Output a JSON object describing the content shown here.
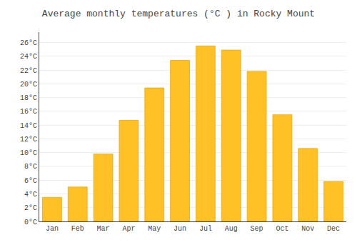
{
  "chart_data": {
    "type": "bar",
    "title": "Average monthly temperatures (°C ) in Rocky Mount",
    "categories": [
      "Jan",
      "Feb",
      "Mar",
      "Apr",
      "May",
      "Jun",
      "Jul",
      "Aug",
      "Sep",
      "Oct",
      "Nov",
      "Dec"
    ],
    "values": [
      3.5,
      5.0,
      9.8,
      14.7,
      19.4,
      23.4,
      25.5,
      24.9,
      21.8,
      15.5,
      10.6,
      5.8
    ],
    "color": "#FFC125",
    "ylim": [
      0,
      27.5
    ],
    "yticks": [
      {
        "value": 0,
        "label": "0°C"
      },
      {
        "value": 2,
        "label": "2°C"
      },
      {
        "value": 4,
        "label": "4°C"
      },
      {
        "value": 6,
        "label": "6°C"
      },
      {
        "value": 8,
        "label": "8°C"
      },
      {
        "value": 10,
        "label": "10°C"
      },
      {
        "value": 12,
        "label": "12°C"
      },
      {
        "value": 14,
        "label": "14°C"
      },
      {
        "value": 16,
        "label": "16°C"
      },
      {
        "value": 18,
        "label": "18°C"
      },
      {
        "value": 20,
        "label": "20°C"
      },
      {
        "value": 22,
        "label": "22°C"
      },
      {
        "value": 24,
        "label": "24°C"
      },
      {
        "value": 26,
        "label": "26°C"
      }
    ],
    "grid": true
  }
}
